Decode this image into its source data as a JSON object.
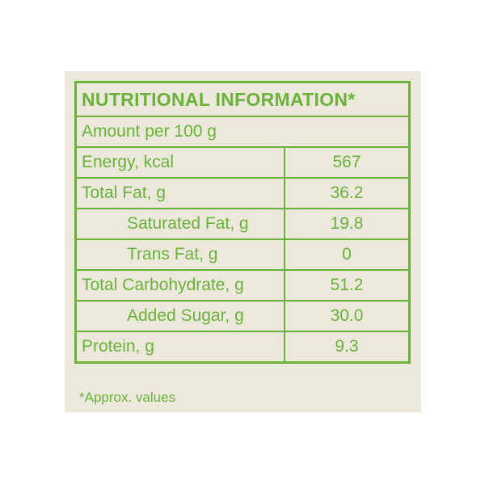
{
  "header": {
    "title": "NUTRITIONAL INFORMATION*",
    "amount": "Amount per 100 g"
  },
  "table": {
    "rows": [
      {
        "label": "Energy, kcal",
        "value": "567",
        "indent": false
      },
      {
        "label": "Total Fat, g",
        "value": "36.2",
        "indent": false
      },
      {
        "label": "Saturated Fat, g",
        "value": "19.8",
        "indent": true
      },
      {
        "label": "Trans Fat, g",
        "value": "0",
        "indent": true
      },
      {
        "label": "Total Carbohydrate, g",
        "value": "51.2",
        "indent": false
      },
      {
        "label": "Added Sugar, g",
        "value": "30.0",
        "indent": true
      },
      {
        "label": "Protein, g",
        "value": "9.3",
        "indent": false
      }
    ]
  },
  "footnote": "*Approx. values"
}
